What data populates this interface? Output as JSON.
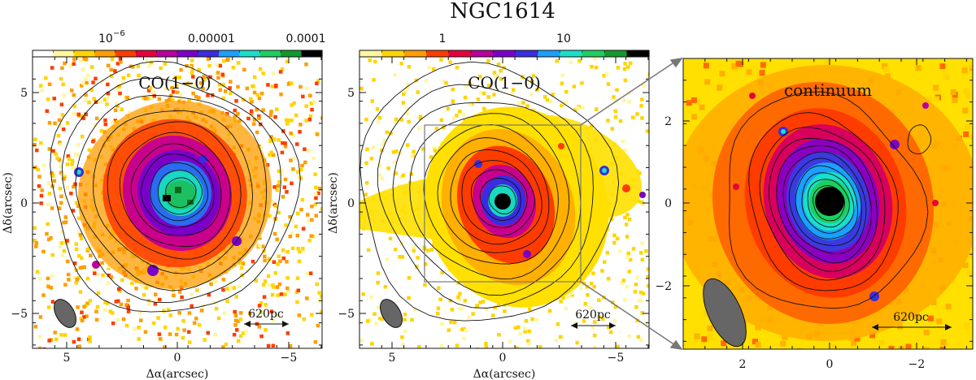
{
  "figure": {
    "title": "NGC1614",
    "panels": [
      {
        "id": "left",
        "colorbar_ticks": [
          "10",
          "0.00001",
          "0.0001"
        ],
        "colorbar_exponent": "−6",
        "label": "CO(1−0)",
        "scalebar": "620pc",
        "xlabel": "Δα(arcsec)",
        "ylabel": "Δδ(arcsec)",
        "xticks": [
          "5",
          "0",
          "−5"
        ],
        "yticks": [
          "5",
          "0",
          "−5"
        ]
      },
      {
        "id": "middle",
        "colorbar_ticks": [
          "1",
          "10"
        ],
        "label": "CO(1−0)",
        "scalebar": "620pc",
        "xlabel": "Δα(arcsec)",
        "ylabel": "Δδ(arcsec)",
        "xticks": [
          "5",
          "0",
          "−5"
        ],
        "yticks": [
          "5",
          "0",
          "−5"
        ]
      },
      {
        "id": "right",
        "label": "continuum",
        "scalebar": "620pc",
        "xticks": [
          "2",
          "0",
          "−2"
        ],
        "yticks": [
          "2",
          "0",
          "−2"
        ]
      }
    ]
  },
  "colors": {
    "colormap": [
      "#ffffff",
      "#fff6a0",
      "#ffd400",
      "#ff9d00",
      "#ff3c00",
      "#e8003c",
      "#b8009c",
      "#7a00c8",
      "#3a2ce0",
      "#1aa0ff",
      "#18e0c8",
      "#1cd060",
      "#119a2c",
      "#000000"
    ],
    "beam": "#666666",
    "contour": "#111111",
    "zoom_box": "#777777"
  }
}
